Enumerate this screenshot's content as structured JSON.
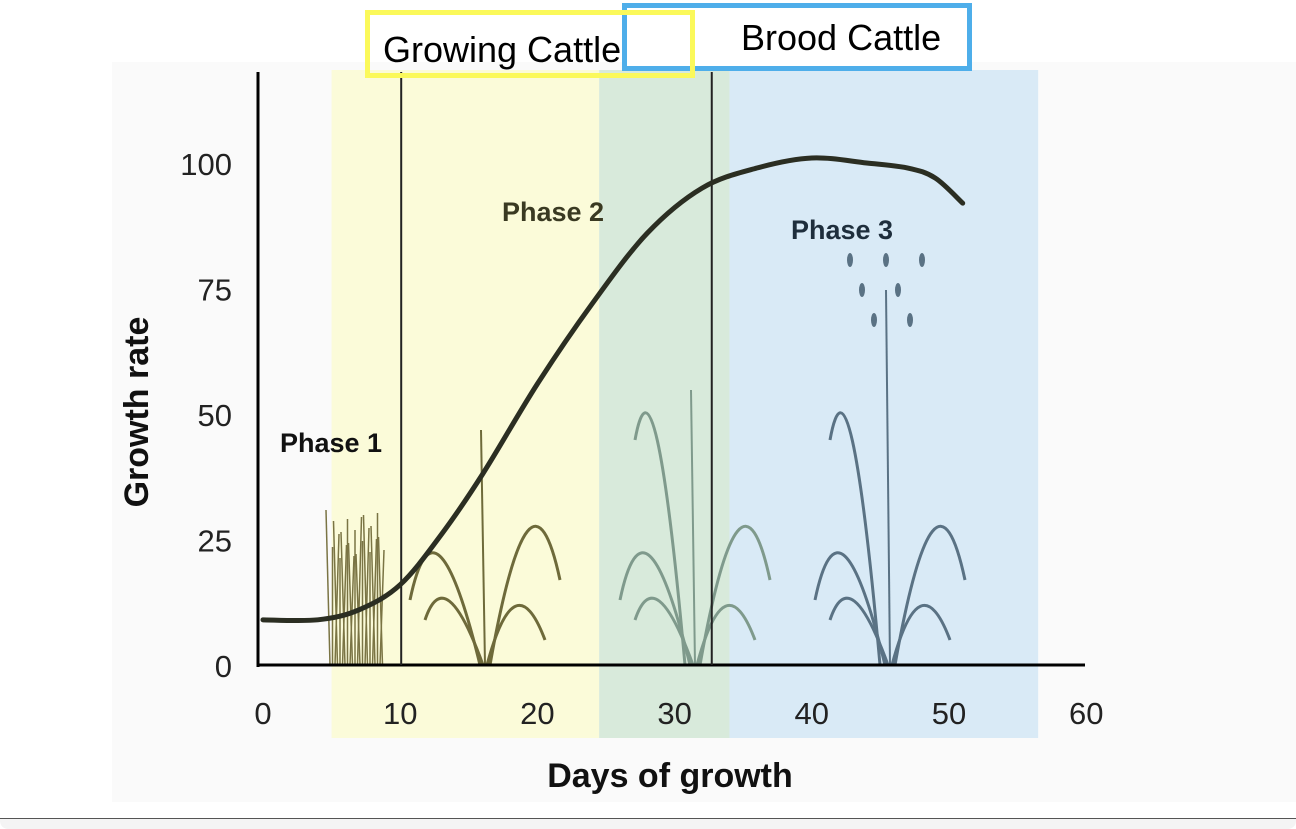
{
  "chart_data": {
    "type": "line",
    "xlabel": "Days of growth",
    "ylabel": "Growth rate",
    "xlim": [
      0,
      60
    ],
    "ylim": [
      0,
      115
    ],
    "xticks": [
      "0",
      "10",
      "20",
      "30",
      "40",
      "50",
      "60"
    ],
    "yticks": [
      "0",
      "25",
      "50",
      "75",
      "100"
    ],
    "grid": false,
    "series": [
      {
        "x": [
          0,
          4,
          7,
          10,
          13,
          16,
          20,
          24,
          28,
          32,
          36,
          40,
          44,
          47,
          49,
          51
        ],
        "y": [
          9,
          9,
          11,
          16,
          26,
          38,
          56,
          72,
          86,
          95,
          99,
          101,
          100,
          99,
          97,
          92
        ]
      }
    ],
    "phase_regions": [
      {
        "label": "Phase 1",
        "start": 0,
        "end": 10
      },
      {
        "label": "Phase 2",
        "start": 10,
        "end": 33
      },
      {
        "label": "Phase 3",
        "start": 33,
        "end": 51
      }
    ],
    "phase_dividers": [
      10,
      33
    ],
    "shaded_bands": [
      {
        "start": 5,
        "end": 24.5,
        "color": "#fbfbd9"
      },
      {
        "start": 24.5,
        "end": 34,
        "color": "#d8eadb"
      },
      {
        "start": 34,
        "end": 56.5,
        "color": "#d9eaf6"
      }
    ],
    "annotations": [
      {
        "text": "Growing Cattle",
        "color": "#fbf95a"
      },
      {
        "text": "Brood Cattle",
        "color": "#4eaeea"
      }
    ]
  }
}
